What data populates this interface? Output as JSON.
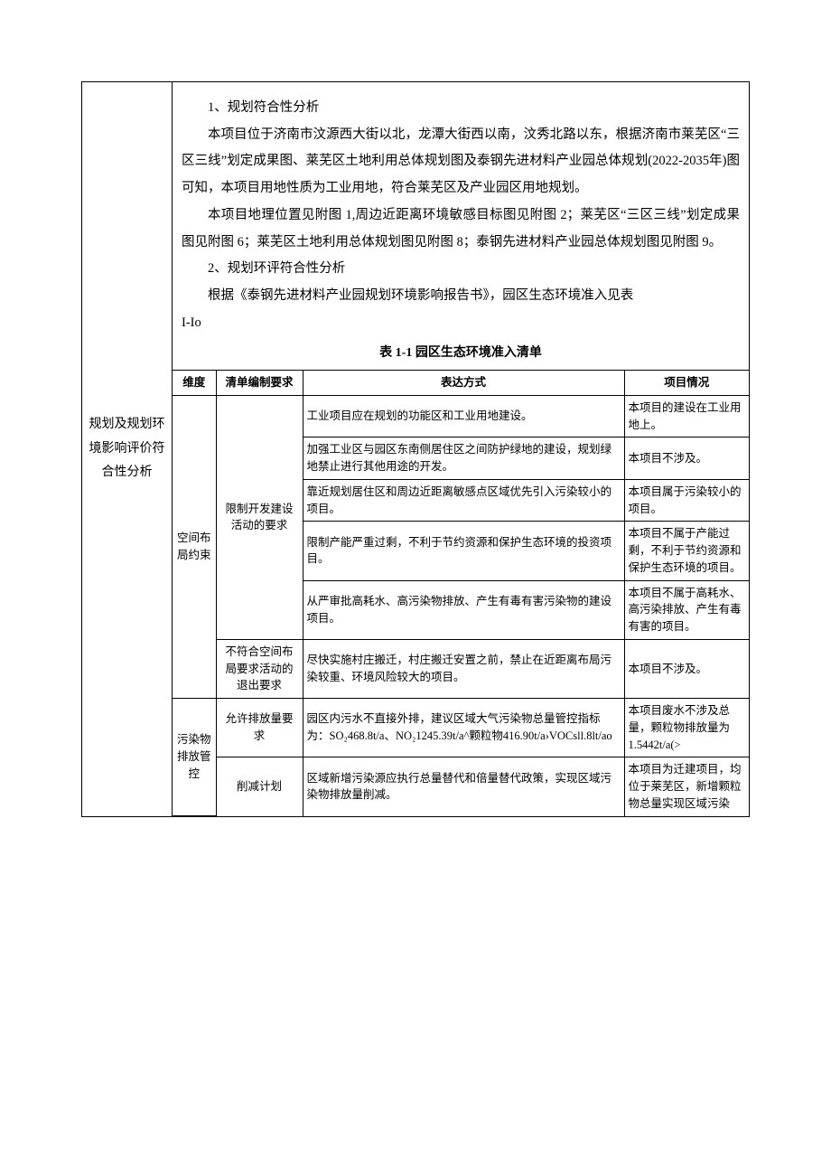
{
  "page": {
    "leftHeading": "规划及规划环境影响评价符合性分析",
    "paragraphs": {
      "h1": "1、规划符合性分析",
      "p1": "本项目位于济南市汶源西大街以北，龙潭大街西以南，汶秀北路以东，根据济南市莱芜区“三区三线”划定成果图、莱芜区土地利用总体规划图及泰钢先进材料产业园总体规划(2022-2035年)图可知，本项目用地性质为工业用地，符合莱芜区及产业园区用地规划。",
      "p2": "本项目地理位置见附图 1,周边近距离环境敏感目标图见附图 2；莱芜区“三区三线”划定成果图见附图 6；莱芜区土地利用总体规划图见附图 8；泰钢先进材料产业园总体规划图见附图 9。",
      "h2": "2、规划环评符合性分析",
      "p3": "根据《泰钢先进材料产业园规划环境影响报告书》，园区生态环境准入见表",
      "iio": "I-Io"
    },
    "tableTitle": "表 1-1 园区生态环境准入清单",
    "columns": {
      "c1": "维度",
      "c2": "清单编制要求",
      "c3": "表达方式",
      "c4": "项目情况"
    },
    "rows": [
      {
        "dim": "空间布局约束",
        "req": "限制开发建设活动的要求",
        "expr": "工业项目应在规划的功能区和工业用地建设。",
        "proj": "本项目的建设在工业用地上。"
      },
      {
        "expr": "加强工业区与园区东南侧居住区之间防护绿地的建设，规划绿地禁止进行其他用途的开发。",
        "proj": "本项目不涉及。"
      },
      {
        "expr": "靠近规划居住区和周边近距离敏感点区域优先引入污染较小的项目。",
        "proj": "本项目属于污染较小的项目。"
      },
      {
        "expr": "限制产能严重过剩，不利于节约资源和保护生态环境的投资项目。",
        "proj": "本项目不属于产能过剩，不利于节约资源和保护生态环境的项目。"
      },
      {
        "expr": "从严审批高耗水、高污染物排放、产生有毒有害污染物的建设项目。",
        "proj": "本项目不属于高耗水、高污染排放、产生有毒有害的项目。"
      },
      {
        "req": "不符合空间布局要求活动的退出要求",
        "expr": "尽快实施村庄搬迁，村庄搬迁安置之前，禁止在近距离布局污染较重、环境风险较大的项目。",
        "proj": "本项目不涉及。"
      },
      {
        "dim": "污染物排放管控",
        "req": "允许排放量要求",
        "expr": "园区内污水不直接外排，建议区域大气污染物总量管控指标为：SO₂468.8t/a、NO₂1245.39t/a^颗粒物416.90t/a›VOCsll.8lt/ao",
        "proj": "本项目废水不涉及总量，颗粒物排放量为1.5442t/a(>"
      },
      {
        "req": "削减计划",
        "expr": "区域新增污染源应执行总量替代和倍量替代政策，实现区域污染物排放量削减。",
        "proj": "本项目为迁建项目，均位于莱芜区，新增颗粒物总量实现区域污染"
      }
    ]
  }
}
